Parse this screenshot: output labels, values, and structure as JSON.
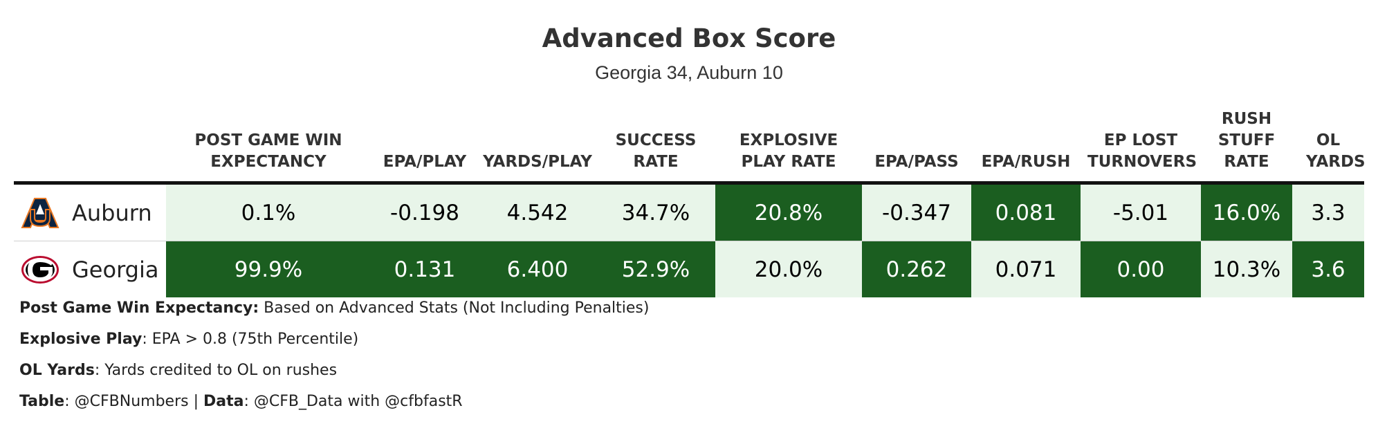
{
  "title": "Advanced Box Score",
  "subtitle": "Georgia 34, Auburn 10",
  "colors": {
    "dark": "#1b5e20",
    "light": "#e8f5e9",
    "dark_text": "#ffffff",
    "light_text": "#000000"
  },
  "chart_data": {
    "type": "table",
    "columns": [
      {
        "key": "wp",
        "label": "POST GAME WIN EXPECTANCY"
      },
      {
        "key": "epa_play",
        "label": "EPA/PLAY"
      },
      {
        "key": "yards_play",
        "label": "YARDS/PLAY"
      },
      {
        "key": "success",
        "label": "SUCCESS RATE"
      },
      {
        "key": "explosive",
        "label": "EXPLOSIVE PLAY RATE"
      },
      {
        "key": "epa_pass",
        "label": "EPA/PASS"
      },
      {
        "key": "epa_rush",
        "label": "EPA/RUSH"
      },
      {
        "key": "ep_lost",
        "label": "EP LOST TURNOVERS"
      },
      {
        "key": "stuff",
        "label": "RUSH STUFF RATE"
      },
      {
        "key": "ol",
        "label": "OL YARDS"
      }
    ],
    "rows": [
      {
        "team": "Auburn",
        "logo": "auburn-logo",
        "values": [
          "0.1%",
          "-0.198",
          "4.542",
          "34.7%",
          "20.8%",
          "-0.347",
          "0.081",
          "-5.01",
          "16.0%",
          "3.3"
        ],
        "shade": [
          "light",
          "light",
          "light",
          "light",
          "dark",
          "light",
          "dark",
          "light",
          "dark",
          "light"
        ]
      },
      {
        "team": "Georgia",
        "logo": "georgia-logo",
        "values": [
          "99.9%",
          "0.131",
          "6.400",
          "52.9%",
          "20.0%",
          "0.262",
          "0.071",
          "0.00",
          "10.3%",
          "3.6"
        ],
        "shade": [
          "dark",
          "dark",
          "dark",
          "dark",
          "light",
          "dark",
          "light",
          "dark",
          "light",
          "dark"
        ]
      }
    ]
  },
  "notes": [
    {
      "segments": [
        {
          "bold": "Post Game Win Expectancy:"
        },
        {
          "text": " Based on Advanced Stats (Not Including Penalties)"
        }
      ]
    },
    {
      "segments": [
        {
          "bold": "Explosive Play"
        },
        {
          "text": ": EPA > 0.8 (75th Percentile)"
        }
      ]
    },
    {
      "segments": [
        {
          "bold": "OL Yards"
        },
        {
          "text": ": Yards credited to OL on rushes"
        }
      ]
    },
    {
      "segments": [
        {
          "bold": "Table"
        },
        {
          "text": ": @CFBNumbers | "
        },
        {
          "bold": "Data"
        },
        {
          "text": ": @CFB_Data with @cfbfastR"
        }
      ]
    }
  ]
}
